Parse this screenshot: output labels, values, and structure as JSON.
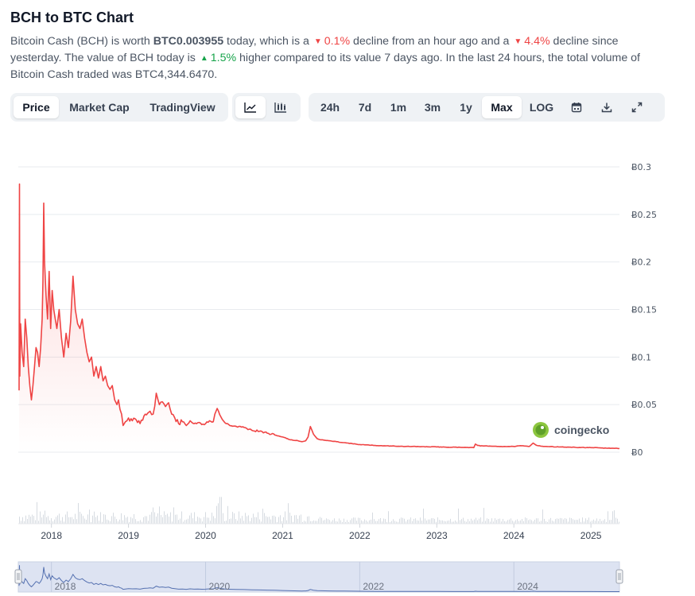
{
  "header": {
    "title": "BCH to BTC Chart",
    "desc": {
      "p1": "Bitcoin Cash (BCH) is worth ",
      "price": "BTC0.003955",
      "p2": " today, which is a ",
      "hour_change": "0.1%",
      "p3": " decline from an hour ago and a ",
      "day_change": "4.4%",
      "p4": " decline since yesterday. The value of BCH today is ",
      "week_change": "1.5%",
      "p5": " higher compared to its value 7 days ago. In the last 24 hours, the total volume of Bitcoin Cash traded was BTC4,344.6470."
    }
  },
  "tabs": {
    "price": "Price",
    "market_cap": "Market Cap",
    "trading_view": "TradingView"
  },
  "ranges": {
    "d24h": "24h",
    "d7": "7d",
    "m1": "1m",
    "m3": "3m",
    "y1": "1y",
    "max": "Max",
    "log": "LOG"
  },
  "icons": {
    "line_chart": "line-chart-icon",
    "candle_chart": "candlestick-chart-icon",
    "calendar": "calendar-icon",
    "download": "download-icon",
    "expand": "expand-icon"
  },
  "colors": {
    "line": "#ef4444",
    "up": "#16a34a",
    "down": "#ef4444",
    "volume": "#d6dbe1",
    "navigator_fill": "#dde3f2",
    "navigator_line": "#5470b0"
  },
  "watermark": "coingecko",
  "chart_data": {
    "type": "line",
    "y_unit_prefix": "Ƀ",
    "yticks": [
      "Ƀ0.3",
      "Ƀ0.25",
      "Ƀ0.2",
      "Ƀ0.15",
      "Ƀ0.1",
      "Ƀ0.05",
      "Ƀ0"
    ],
    "ytick_values": [
      0.3,
      0.25,
      0.2,
      0.15,
      0.1,
      0.05,
      0
    ],
    "ylim": [
      0,
      0.3
    ],
    "xlim": [
      2017.57,
      2025.37
    ],
    "xticks": [
      "2018",
      "2019",
      "2020",
      "2021",
      "2022",
      "2023",
      "2024",
      "2025"
    ],
    "xtick_values": [
      2018,
      2019,
      2020,
      2021,
      2022,
      2023,
      2024,
      2025
    ],
    "navigator_ticks": [
      "2018",
      "2020",
      "2022",
      "2024"
    ],
    "navigator_tick_values": [
      2018,
      2020,
      2022,
      2024
    ],
    "series": [
      {
        "x": [
          2017.58,
          2017.585,
          2017.59,
          2017.6,
          2017.62,
          2017.64,
          2017.66,
          2017.68,
          2017.7,
          2017.72,
          2017.74,
          2017.76,
          2017.78,
          2017.8,
          2017.82,
          2017.84,
          2017.86,
          2017.88,
          2017.89,
          2017.9,
          2017.91,
          2017.93,
          2017.95,
          2017.97,
          2017.99,
          2018.01,
          2018.03,
          2018.05,
          2018.07,
          2018.1,
          2018.13,
          2018.16,
          2018.19,
          2018.22,
          2018.25,
          2018.28,
          2018.31,
          2018.34,
          2018.37,
          2018.4,
          2018.43,
          2018.46,
          2018.49,
          2018.52,
          2018.55,
          2018.58,
          2018.61,
          2018.64,
          2018.67,
          2018.7,
          2018.73,
          2018.76,
          2018.79,
          2018.82,
          2018.85,
          2018.87,
          2018.89,
          2018.91,
          2018.93,
          2018.96,
          2019.0,
          2019.05,
          2019.1,
          2019.15,
          2019.2,
          2019.25,
          2019.28,
          2019.32,
          2019.36,
          2019.4,
          2019.44,
          2019.48,
          2019.52,
          2019.56,
          2019.6,
          2019.65,
          2019.7,
          2019.75,
          2019.8,
          2019.85,
          2019.9,
          2019.95,
          2020.0,
          2020.05,
          2020.1,
          2020.12,
          2020.15,
          2020.2,
          2020.25,
          2020.3,
          2020.4,
          2020.5,
          2020.6,
          2020.7,
          2020.8,
          2020.9,
          2021.0,
          2021.1,
          2021.2,
          2021.25,
          2021.3,
          2021.33,
          2021.36,
          2021.4,
          2021.45,
          2021.5,
          2021.6,
          2021.7,
          2021.8,
          2021.9,
          2022.0,
          2022.2,
          2022.4,
          2022.6,
          2022.8,
          2023.0,
          2023.2,
          2023.4,
          2023.48,
          2023.5,
          2023.53,
          2023.6,
          2023.8,
          2024.0,
          2024.1,
          2024.2,
          2024.25,
          2024.3,
          2024.4,
          2024.6,
          2024.8,
          2025.0,
          2025.2,
          2025.37
        ],
        "y": [
          0.065,
          0.282,
          0.08,
          0.135,
          0.105,
          0.09,
          0.14,
          0.12,
          0.09,
          0.07,
          0.055,
          0.07,
          0.09,
          0.11,
          0.105,
          0.09,
          0.11,
          0.14,
          0.18,
          0.262,
          0.2,
          0.165,
          0.14,
          0.19,
          0.13,
          0.17,
          0.15,
          0.14,
          0.13,
          0.15,
          0.12,
          0.1,
          0.125,
          0.11,
          0.138,
          0.185,
          0.15,
          0.135,
          0.13,
          0.14,
          0.12,
          0.105,
          0.095,
          0.1,
          0.08,
          0.09,
          0.078,
          0.09,
          0.075,
          0.08,
          0.07,
          0.066,
          0.07,
          0.055,
          0.05,
          0.055,
          0.045,
          0.04,
          0.028,
          0.032,
          0.036,
          0.033,
          0.034,
          0.03,
          0.038,
          0.041,
          0.043,
          0.04,
          0.062,
          0.05,
          0.053,
          0.048,
          0.052,
          0.04,
          0.036,
          0.03,
          0.032,
          0.028,
          0.033,
          0.03,
          0.031,
          0.029,
          0.03,
          0.033,
          0.032,
          0.04,
          0.046,
          0.037,
          0.031,
          0.029,
          0.027,
          0.026,
          0.023,
          0.022,
          0.02,
          0.018,
          0.016,
          0.013,
          0.012,
          0.011,
          0.012,
          0.016,
          0.027,
          0.019,
          0.014,
          0.013,
          0.012,
          0.011,
          0.01,
          0.009,
          0.008,
          0.007,
          0.0065,
          0.006,
          0.0058,
          0.0055,
          0.0052,
          0.005,
          0.0048,
          0.0085,
          0.007,
          0.0065,
          0.006,
          0.006,
          0.0068,
          0.006,
          0.0095,
          0.007,
          0.006,
          0.0055,
          0.005,
          0.0048,
          0.0042,
          0.0039
        ]
      }
    ],
    "volume_peak_x": 2020.17,
    "grid": true,
    "legend": "none"
  }
}
